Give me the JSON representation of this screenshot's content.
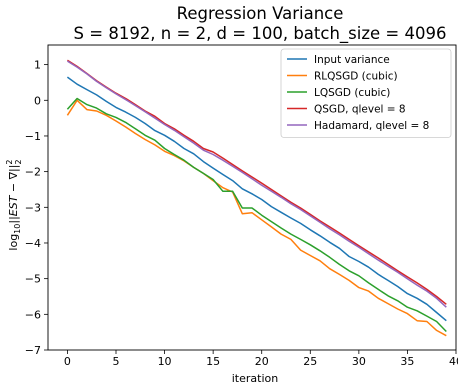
{
  "chart_data": {
    "type": "line",
    "title_line1": "Regression Variance",
    "title_line2": "S = 8192, n = 2, d = 100, batch_size = 4096",
    "xlabel": "iteration",
    "ylabel_prefix": "log",
    "ylabel_sub": "10",
    "ylabel_body": "||EST − ∇||",
    "ylabel_sup": "2",
    "ylabel_sub2": "2",
    "xlim": [
      -2,
      40
    ],
    "ylim": [
      -7,
      1.55
    ],
    "xticks": [
      0,
      5,
      10,
      15,
      20,
      25,
      30,
      35,
      40
    ],
    "yticks": [
      -7,
      -6,
      -5,
      -4,
      -3,
      -2,
      -1,
      0,
      1
    ],
    "ytick_labels": [
      "−7",
      "−6",
      "−5",
      "−4",
      "−3",
      "−2",
      "−1",
      "0",
      "1"
    ],
    "legend_position": "top-right",
    "grid": false,
    "x": [
      0,
      1,
      2,
      3,
      4,
      5,
      6,
      7,
      8,
      9,
      10,
      11,
      12,
      13,
      14,
      15,
      16,
      17,
      18,
      19,
      20,
      21,
      22,
      23,
      24,
      25,
      26,
      27,
      28,
      29,
      30,
      31,
      32,
      33,
      34,
      35,
      36,
      37,
      38,
      39
    ],
    "series": [
      {
        "name": "Input variance",
        "color": "#1f77b4",
        "values": [
          0.65,
          0.45,
          0.3,
          0.15,
          -0.03,
          -0.2,
          -0.33,
          -0.48,
          -0.65,
          -0.85,
          -0.98,
          -1.15,
          -1.35,
          -1.5,
          -1.72,
          -1.9,
          -2.08,
          -2.25,
          -2.48,
          -2.62,
          -2.78,
          -2.98,
          -3.14,
          -3.3,
          -3.45,
          -3.63,
          -3.8,
          -3.98,
          -4.15,
          -4.38,
          -4.52,
          -4.68,
          -4.88,
          -5.05,
          -5.22,
          -5.42,
          -5.55,
          -5.72,
          -5.95,
          -6.18
        ]
      },
      {
        "name": "RLQSGD (cubic)",
        "color": "#ff7f0e",
        "values": [
          -0.42,
          0.0,
          -0.26,
          -0.3,
          -0.42,
          -0.58,
          -0.75,
          -0.93,
          -1.1,
          -1.25,
          -1.43,
          -1.55,
          -1.7,
          -1.88,
          -2.05,
          -2.25,
          -2.45,
          -2.57,
          -3.18,
          -3.15,
          -3.35,
          -3.55,
          -3.75,
          -3.9,
          -4.2,
          -4.35,
          -4.5,
          -4.72,
          -4.88,
          -5.05,
          -5.25,
          -5.35,
          -5.55,
          -5.7,
          -5.85,
          -5.98,
          -6.18,
          -6.2,
          -6.45,
          -6.6
        ]
      },
      {
        "name": "LQSGD (cubic)",
        "color": "#2ca02c",
        "values": [
          -0.25,
          0.05,
          -0.12,
          -0.22,
          -0.38,
          -0.48,
          -0.62,
          -0.8,
          -0.98,
          -1.12,
          -1.35,
          -1.52,
          -1.68,
          -1.88,
          -2.05,
          -2.22,
          -2.55,
          -2.55,
          -3.02,
          -3.02,
          -3.22,
          -3.4,
          -3.58,
          -3.75,
          -3.9,
          -4.05,
          -4.22,
          -4.4,
          -4.6,
          -4.78,
          -4.92,
          -5.12,
          -5.3,
          -5.48,
          -5.62,
          -5.8,
          -5.9,
          -6.05,
          -6.2,
          -6.48
        ]
      },
      {
        "name": "QSGD, qlevel = 8",
        "color": "#d62728",
        "values": [
          1.12,
          0.95,
          0.75,
          0.55,
          0.37,
          0.2,
          0.05,
          -0.12,
          -0.3,
          -0.45,
          -0.65,
          -0.8,
          -0.98,
          -1.15,
          -1.35,
          -1.45,
          -1.62,
          -1.8,
          -1.98,
          -2.15,
          -2.32,
          -2.5,
          -2.68,
          -2.86,
          -3.02,
          -3.2,
          -3.38,
          -3.55,
          -3.72,
          -3.9,
          -4.08,
          -4.25,
          -4.42,
          -4.6,
          -4.78,
          -4.95,
          -5.12,
          -5.3,
          -5.5,
          -5.72
        ]
      },
      {
        "name": "Hadamard, qlevel = 8",
        "color": "#9467bd",
        "values": [
          1.1,
          0.93,
          0.74,
          0.53,
          0.35,
          0.18,
          0.02,
          -0.15,
          -0.32,
          -0.5,
          -0.68,
          -0.84,
          -1.02,
          -1.2,
          -1.4,
          -1.52,
          -1.68,
          -1.85,
          -2.02,
          -2.2,
          -2.38,
          -2.55,
          -2.72,
          -2.9,
          -3.06,
          -3.24,
          -3.42,
          -3.6,
          -3.77,
          -3.95,
          -4.12,
          -4.3,
          -4.48,
          -4.65,
          -4.82,
          -5.0,
          -5.18,
          -5.35,
          -5.55,
          -5.8
        ]
      }
    ]
  }
}
